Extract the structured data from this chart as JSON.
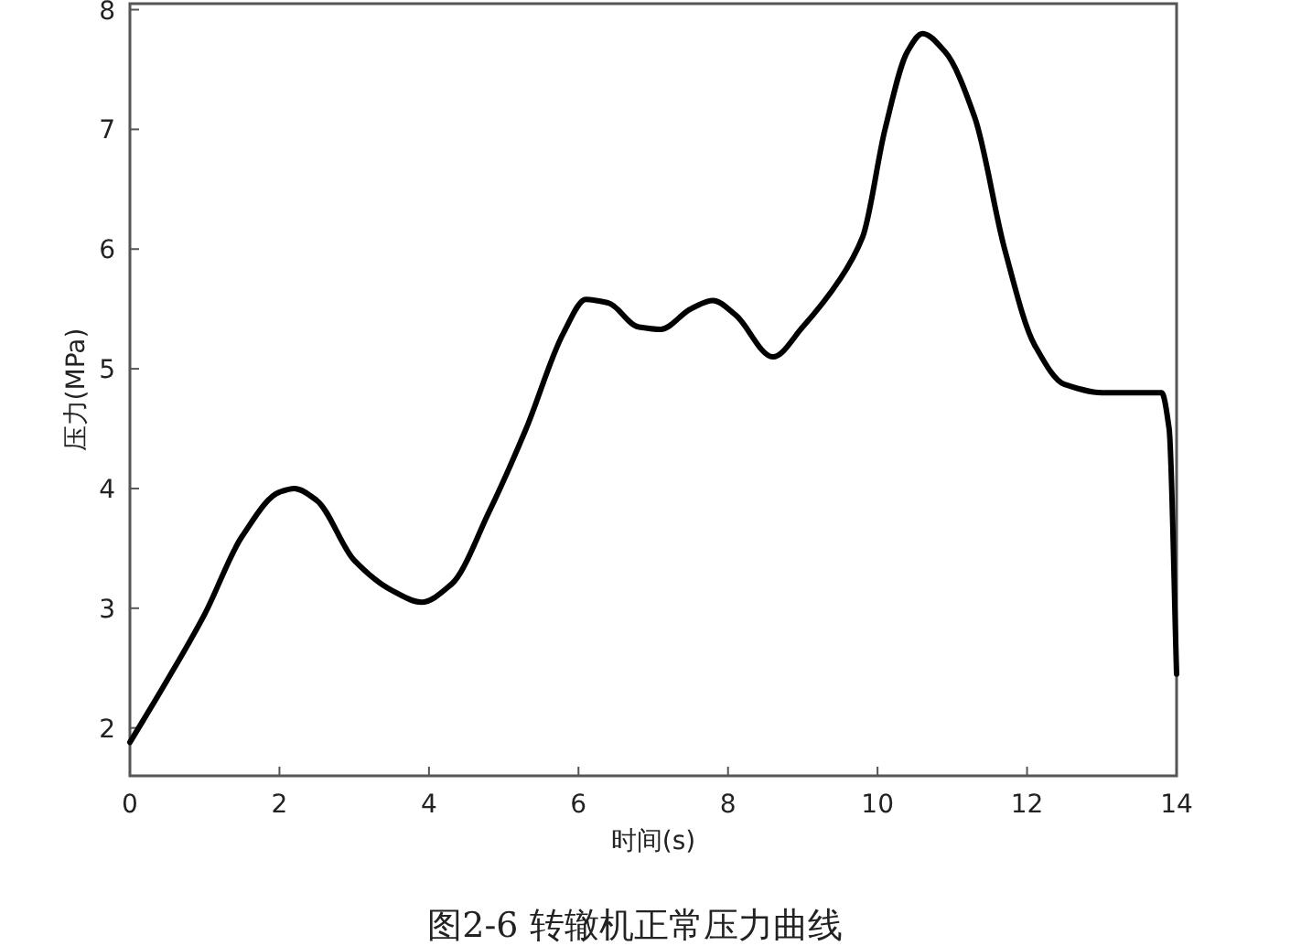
{
  "chart_data": {
    "type": "line",
    "title": "图2-6 转辙机正常压力曲线",
    "xlabel": "时间(s)",
    "ylabel": "压力(MPa)",
    "x": [
      0,
      0.5,
      1.0,
      1.5,
      2.0,
      2.2,
      2.5,
      3.0,
      3.5,
      3.9,
      4.3,
      4.8,
      5.3,
      5.8,
      6.1,
      6.4,
      6.8,
      7.1,
      7.5,
      7.8,
      8.1,
      8.6,
      9.0,
      9.5,
      9.8,
      10.1,
      10.4,
      10.6,
      10.9,
      11.3,
      11.7,
      12.1,
      12.5,
      13.0,
      13.5,
      13.8,
      13.9,
      14.0
    ],
    "series": [
      {
        "color": "#000000",
        "values": [
          1.88,
          2.4,
          2.95,
          3.6,
          3.97,
          4.0,
          3.9,
          3.4,
          3.15,
          3.05,
          3.2,
          3.8,
          4.5,
          5.3,
          5.58,
          5.55,
          5.35,
          5.33,
          5.5,
          5.57,
          5.45,
          5.1,
          5.35,
          5.75,
          6.1,
          7.0,
          7.65,
          7.8,
          7.65,
          7.1,
          6.0,
          5.2,
          4.87,
          4.8,
          4.8,
          4.8,
          4.5,
          2.45
        ]
      }
    ],
    "xlim": [
      0,
      14
    ],
    "ylim": [
      1.6,
      8.05
    ],
    "xticks": [
      0,
      2,
      4,
      6,
      8,
      10,
      12,
      14
    ],
    "yticks": [
      2,
      3,
      4,
      5,
      6,
      7,
      8
    ],
    "grid": false,
    "marker": "none",
    "line_style": "solid"
  }
}
